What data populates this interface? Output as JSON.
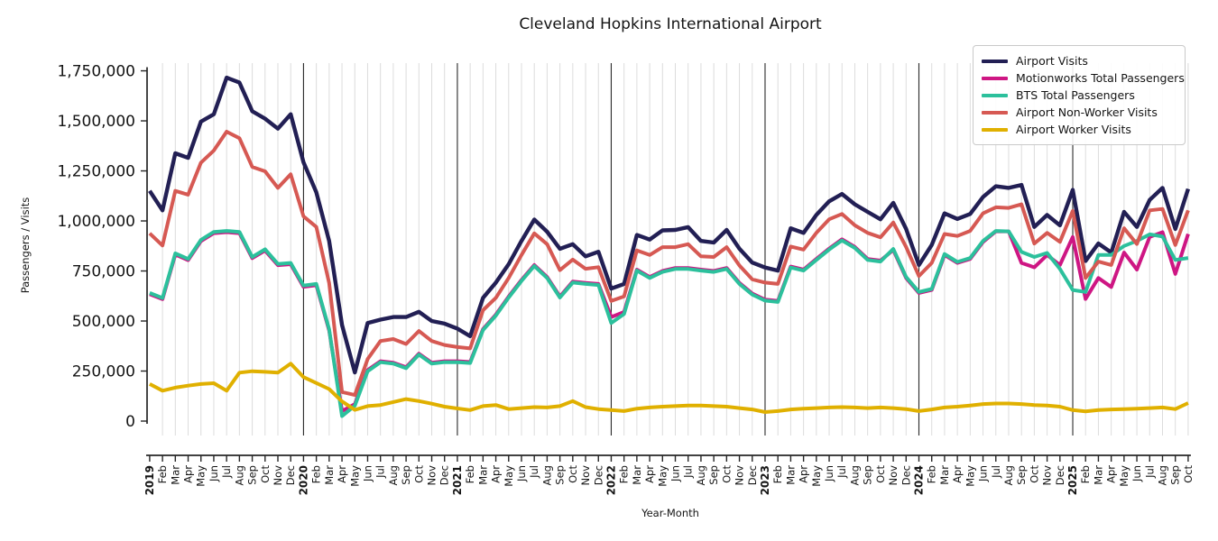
{
  "title": "Cleveland Hopkins International Airport",
  "chart_data": {
    "type": "line",
    "title": "Cleveland Hopkins International Airport",
    "xlabel": "Year-Month",
    "ylabel": "Passengers / Visits",
    "ylim": [
      0,
      1750000
    ],
    "yticks": [
      0,
      250000,
      500000,
      750000,
      1000000,
      1250000,
      1500000,
      1750000
    ],
    "grid": "vertical monthly gridlines, dark vertical line at each January",
    "legend_position": "upper right",
    "x_start": "2019-01",
    "x_end": "2025-10",
    "x_labels": [
      "2019",
      "Feb",
      "Mar",
      "Apr",
      "May",
      "Jun",
      "Jul",
      "Aug",
      "Sep",
      "Oct",
      "Nov",
      "Dec",
      "2020",
      "Feb",
      "Mar",
      "Apr",
      "May",
      "Jun",
      "Jul",
      "Aug",
      "Sep",
      "Oct",
      "Nov",
      "Dec",
      "2021",
      "Feb",
      "Mar",
      "Apr",
      "May",
      "Jun",
      "Jul",
      "Aug",
      "Sep",
      "Oct",
      "Nov",
      "Dec",
      "2022",
      "Feb",
      "Mar",
      "Apr",
      "May",
      "Jun",
      "Jul",
      "Aug",
      "Sep",
      "Oct",
      "Nov",
      "Dec",
      "2023",
      "Feb",
      "Mar",
      "Apr",
      "May",
      "Jun",
      "Jul",
      "Aug",
      "Sep",
      "Oct",
      "Nov",
      "Dec",
      "2024",
      "Feb",
      "Mar",
      "Apr",
      "May",
      "Jun",
      "Jul",
      "Aug",
      "Sep",
      "Oct",
      "Nov",
      "Dec",
      "2025",
      "Feb",
      "Mar",
      "Apr",
      "May",
      "Jun",
      "Jul",
      "Aug",
      "Sep",
      "Oct"
    ],
    "series": [
      {
        "name": "Airport Visits",
        "color": "#221f54",
        "values": [
          1150000,
          1053000,
          1338000,
          1315000,
          1496000,
          1533000,
          1716000,
          1691000,
          1548000,
          1511000,
          1461000,
          1533000,
          1293000,
          1143000,
          900000,
          480000,
          243000,
          490000,
          507000,
          520000,
          520000,
          546000,
          500000,
          487000,
          462000,
          424000,
          616000,
          692000,
          784000,
          900000,
          1007000,
          946000,
          861000,
          884000,
          823000,
          846000,
          662000,
          685000,
          930000,
          907000,
          953000,
          955000,
          969000,
          900000,
          892000,
          955000,
          861000,
          792000,
          767000,
          752000,
          963000,
          940000,
          1030000,
          1098000,
          1135000,
          1083000,
          1045000,
          1008000,
          1090000,
          960000,
          780000,
          880000,
          1038000,
          1010000,
          1035000,
          1120000,
          1173000,
          1165000,
          1180000,
          970000,
          1030000,
          978000,
          1155000,
          800000,
          887000,
          842000,
          1045000,
          970000,
          1105000,
          1165000,
          960000,
          1160000
        ]
      },
      {
        "name": "Motionworks Total Passengers",
        "color": "#ce1683",
        "values": [
          634000,
          609000,
          832000,
          804000,
          899000,
          939000,
          944000,
          939000,
          814000,
          852000,
          779000,
          784000,
          671000,
          679000,
          453000,
          50000,
          85000,
          255000,
          299000,
          292000,
          269000,
          337000,
          292000,
          299000,
          299000,
          295000,
          460000,
          532000,
          622000,
          705000,
          780000,
          720000,
          622000,
          697000,
          690000,
          685000,
          520000,
          545000,
          757000,
          720000,
          750000,
          765000,
          765000,
          757000,
          750000,
          765000,
          690000,
          637000,
          607000,
          600000,
          772000,
          757000,
          810000,
          862000,
          908000,
          870000,
          810000,
          802000,
          855000,
          715000,
          640000,
          655000,
          830000,
          790000,
          810000,
          895000,
          948000,
          948000,
          790000,
          768000,
          830000,
          780000,
          920000,
          610000,
          715000,
          670000,
          842000,
          757000,
          920000,
          944000,
          735000,
          935000
        ]
      },
      {
        "name": "BTS Total Passengers",
        "color": "#2cc09c",
        "values": [
          640000,
          615000,
          838000,
          810000,
          905000,
          945000,
          950000,
          945000,
          820000,
          858000,
          785000,
          790000,
          677000,
          685000,
          459000,
          25000,
          77000,
          249000,
          294000,
          287000,
          264000,
          332000,
          287000,
          294000,
          294000,
          290000,
          455000,
          527000,
          617000,
          700000,
          775000,
          715000,
          617000,
          692000,
          685000,
          680000,
          490000,
          535000,
          752000,
          715000,
          745000,
          760000,
          760000,
          752000,
          745000,
          760000,
          685000,
          632000,
          602000,
          595000,
          767000,
          752000,
          805000,
          857000,
          903000,
          865000,
          805000,
          797000,
          860000,
          720000,
          645000,
          660000,
          835000,
          795000,
          815000,
          900000,
          950000,
          948000,
          845000,
          820000,
          840000,
          760000,
          655000,
          645000,
          830000,
          830000,
          875000,
          900000,
          933000,
          922000,
          805000,
          815000
        ]
      },
      {
        "name": "Airport Non-Worker Visits",
        "color": "#d65953",
        "values": [
          938000,
          877000,
          1150000,
          1131000,
          1291000,
          1352000,
          1446000,
          1413000,
          1270000,
          1248000,
          1165000,
          1233000,
          1023000,
          970000,
          690000,
          145000,
          130000,
          310000,
          400000,
          410000,
          385000,
          450000,
          400000,
          380000,
          370000,
          363000,
          554000,
          616000,
          715000,
          830000,
          938000,
          884000,
          754000,
          807000,
          761000,
          769000,
          600000,
          623000,
          853000,
          830000,
          869000,
          869000,
          884000,
          823000,
          820000,
          869000,
          777000,
          708000,
          692000,
          685000,
          872000,
          857000,
          940000,
          1008000,
          1035000,
          978000,
          940000,
          918000,
          992000,
          870000,
          725000,
          790000,
          935000,
          925000,
          950000,
          1038000,
          1068000,
          1065000,
          1083000,
          887000,
          940000,
          895000,
          1050000,
          715000,
          797000,
          780000,
          963000,
          885000,
          1053000,
          1060000,
          880000,
          1053000
        ]
      },
      {
        "name": "Airport Worker Visits",
        "color": "#e0b000",
        "values": [
          185000,
          152000,
          167000,
          177000,
          185000,
          189000,
          152000,
          242000,
          249000,
          246000,
          242000,
          287000,
          220000,
          190000,
          160000,
          98000,
          56000,
          75000,
          80000,
          95000,
          110000,
          100000,
          87000,
          72000,
          63000,
          55000,
          75000,
          80000,
          60000,
          65000,
          70000,
          68000,
          75000,
          100000,
          70000,
          60000,
          55000,
          50000,
          62000,
          68000,
          72000,
          75000,
          78000,
          78000,
          75000,
          72000,
          65000,
          58000,
          45000,
          50000,
          58000,
          62000,
          65000,
          68000,
          70000,
          68000,
          65000,
          68000,
          65000,
          60000,
          50000,
          58000,
          68000,
          72000,
          78000,
          85000,
          88000,
          88000,
          85000,
          80000,
          78000,
          72000,
          55000,
          48000,
          55000,
          58000,
          60000,
          62000,
          65000,
          68000,
          60000,
          90000
        ]
      }
    ]
  }
}
